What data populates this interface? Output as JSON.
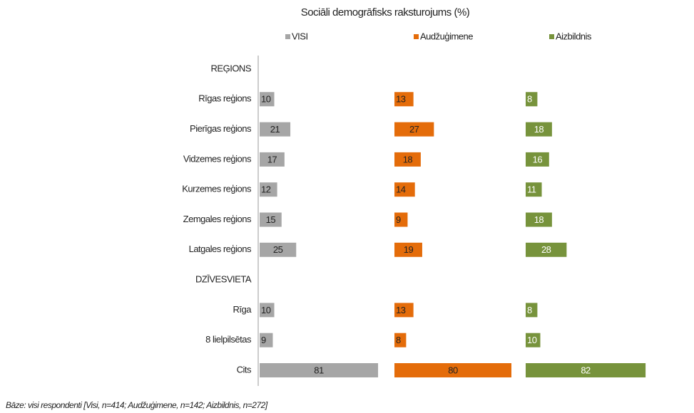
{
  "chart_data": {
    "type": "bar",
    "orientation": "horizontal",
    "title": "Sociāli demogrāfisks raksturojums (%)",
    "categories": [
      "REĢIONS",
      "Rīgas reģions",
      "Pierīgas reģions",
      "Vidzemes reģions",
      "Kurzemes reģions",
      "Zemgales reģions",
      "Latgales reģions",
      "DZĪVESVIETA",
      "Rīga",
      "8 lielpilsētas",
      "Cits"
    ],
    "series": [
      {
        "name": "VISI",
        "color": "#a6a6a6",
        "values": [
          null,
          10,
          21,
          17,
          12,
          15,
          25,
          null,
          10,
          9,
          81
        ]
      },
      {
        "name": "Audžuģimene",
        "color": "#e46c0a",
        "values": [
          null,
          13,
          27,
          18,
          14,
          9,
          19,
          null,
          13,
          8,
          80
        ]
      },
      {
        "name": "Aizbildnis",
        "color": "#77933c",
        "values": [
          null,
          8,
          18,
          16,
          11,
          18,
          28,
          null,
          8,
          10,
          82
        ]
      }
    ],
    "note": "Bāze: visi respondenti [Visi, n=414; Audžuģimene, n=142; Aizbildnis, n=272]"
  }
}
